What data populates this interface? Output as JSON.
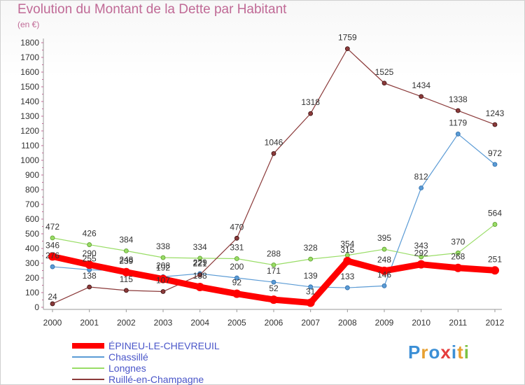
{
  "title": "Evolution du Montant de la Dette par Habitant",
  "unit": "(en €)",
  "logo": {
    "text": "Proxiti",
    "colors": [
      "#3b8fd6",
      "#e8a030",
      "#3b8fd6",
      "#e53d3d",
      "#3b8fd6",
      "#e8a030",
      "#7cc243"
    ]
  },
  "chart_data": {
    "type": "line",
    "title": "Evolution du Montant de la Dette par Habitant",
    "ylabel": "(en €)",
    "x": [
      "2000",
      "2001",
      "2002",
      "2003",
      "2004",
      "2005",
      "2006",
      "2007",
      "2008",
      "2009",
      "2010",
      "2011",
      "2012"
    ],
    "ylim": [
      0,
      1800
    ],
    "yticks": [
      0,
      100,
      200,
      300,
      400,
      500,
      600,
      700,
      800,
      900,
      1000,
      1100,
      1200,
      1300,
      1400,
      1500,
      1600,
      1700,
      1800
    ],
    "grid": false,
    "legend": "bottom-left",
    "series": [
      {
        "name": "ÉPINEU-LE-CHEVREUIL",
        "color": "#ff0000",
        "values": [
          346,
          290,
          239,
          192,
          138,
          92,
          52,
          31,
          315,
          248,
          292,
          268,
          251
        ]
      },
      {
        "name": "Chassillé",
        "color": "#5b9bd5",
        "values": [
          276,
          255,
          248,
          208,
          229,
          200,
          171,
          139,
          133,
          146,
          812,
          1179,
          972
        ]
      },
      {
        "name": "Longnes",
        "color": "#99dd66",
        "values": [
          472,
          426,
          384,
          338,
          334,
          331,
          288,
          328,
          354,
          395,
          343,
          370,
          564
        ]
      },
      {
        "name": "Ruillé-en-Champagne",
        "color": "#8b3a3a",
        "values": [
          24,
          138,
          115,
          107,
          221,
          470,
          1046,
          1318,
          1759,
          1525,
          1434,
          1338,
          1243
        ]
      }
    ],
    "data_labels": [
      [
        "346",
        "290",
        "239",
        "192",
        "138",
        "92",
        "52",
        "31",
        "315",
        "248",
        "292",
        "268",
        "251"
      ],
      [
        "276",
        "255",
        "248",
        "208",
        "229",
        "200",
        "171",
        "139",
        "133",
        "146",
        "812",
        "1179",
        "972"
      ],
      [
        "472",
        "426",
        "384",
        "338",
        "334",
        "331",
        "288",
        "328",
        "354",
        "395",
        "343",
        "370",
        "564"
      ],
      [
        "24",
        "138",
        "115",
        "107",
        "221",
        "470",
        "1046",
        "1318",
        "1759",
        "1525",
        "1434",
        "1338",
        "1243"
      ]
    ]
  }
}
